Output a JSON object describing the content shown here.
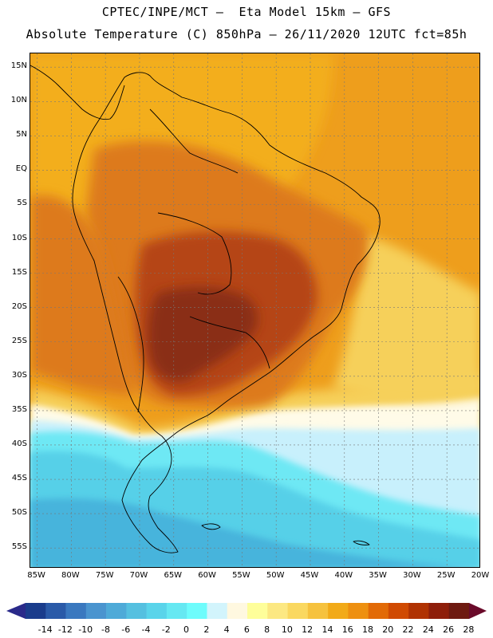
{
  "header": {
    "line1": "CPTEC/INPE/MCT –  Eta Model 15km – GFS",
    "line2": "Absolute Temperature (C) 850hPa – 26/11/2020 12UTC fct=85h"
  },
  "map": {
    "lat_labels": [
      "15N",
      "10N",
      "5N",
      "EQ",
      "5S",
      "10S",
      "15S",
      "20S",
      "25S",
      "30S",
      "35S",
      "40S",
      "45S",
      "50S",
      "55S"
    ],
    "lon_labels": [
      "85W",
      "80W",
      "75W",
      "70W",
      "65W",
      "60W",
      "55W",
      "50W",
      "45W",
      "40W",
      "35W",
      "30W",
      "25W",
      "20W"
    ],
    "lat_values": [
      15,
      10,
      5,
      0,
      -5,
      -10,
      -15,
      -20,
      -25,
      -30,
      -35,
      -40,
      -45,
      -50,
      -55
    ],
    "lon_values": [
      -85,
      -80,
      -75,
      -70,
      -65,
      -60,
      -55,
      -50,
      -45,
      -40,
      -35,
      -30,
      -25,
      -20
    ]
  },
  "colorbar": {
    "labels": [
      "-14",
      "-12",
      "-10",
      "-8",
      "-6",
      "-4",
      "-2",
      "0",
      "2",
      "4",
      "6",
      "8",
      "10",
      "12",
      "14",
      "16",
      "18",
      "20",
      "22",
      "24",
      "26",
      "28"
    ],
    "colors": [
      "#1a3c8c",
      "#2a5aa8",
      "#3a78bf",
      "#4a94cf",
      "#4eaad8",
      "#55c0e0",
      "#5ad4ea",
      "#66e8f2",
      "#6efcfc",
      "#d2f4fc",
      "#fff8e0",
      "#fefe9a",
      "#fce882",
      "#fad860",
      "#f6c23e",
      "#f2aa18",
      "#ee9010",
      "#e26a06",
      "#d04a02",
      "#b03202",
      "#8e1e0a",
      "#6e1a10"
    ],
    "left_arrow_color": "#2a2a8a",
    "right_arrow_color": "#6a0a2a"
  },
  "palette": {
    "very_hot": "#8a2e14",
    "hot": "#b54512",
    "warm": "#dd7a1a",
    "orange": "#ee9e1c",
    "gold": "#f3ae1e",
    "yellow": "#f6d05a",
    "pale": "#fbeeb8",
    "cream": "#fffbe8",
    "light_blue": "#c8f0fc",
    "cyan": "#6ee8f4",
    "sky": "#56d0e8",
    "blue": "#46b4dc",
    "deep_blue": "#3c9ccc"
  }
}
